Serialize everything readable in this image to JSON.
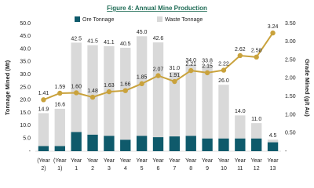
{
  "chart_data": {
    "type": "bar-line",
    "title": "Figure 4: Annual Mine Production",
    "categories": [
      [
        "(Year",
        "2)"
      ],
      [
        "(Year",
        "1)"
      ],
      [
        "Year",
        "1"
      ],
      [
        "Year",
        "2"
      ],
      [
        "Year",
        "3"
      ],
      [
        "Year",
        "4"
      ],
      [
        "Year",
        "5"
      ],
      [
        "Year",
        "6"
      ],
      [
        "Year",
        "7"
      ],
      [
        "Year",
        "8"
      ],
      [
        "Year",
        "9"
      ],
      [
        "Year",
        "10"
      ],
      [
        "Year",
        "11"
      ],
      [
        "Year",
        "12"
      ],
      [
        "Year",
        "13"
      ]
    ],
    "series": [
      {
        "name": "Ore Tonnage",
        "color": "#0f5a6b",
        "values": [
          2,
          2,
          7.5,
          6.5,
          6,
          4.5,
          6,
          5.5,
          5.8,
          6,
          5,
          5,
          5,
          5,
          3.5
        ]
      },
      {
        "name": "Waste Tonnage",
        "color": "#d9d9d9",
        "values": [
          12.9,
          14.6,
          35,
          35,
          35.1,
          36,
          39,
          37.1,
          25.2,
          28,
          28.8,
          21,
          9,
          6,
          1
        ]
      },
      {
        "name": "Grade",
        "type": "line",
        "axis": "y2",
        "color": "#c9a23c",
        "values": [
          1.41,
          1.59,
          1.6,
          1.48,
          1.63,
          1.66,
          1.85,
          2.07,
          1.91,
          2.21,
          2.15,
          2.22,
          2.62,
          2.58,
          3.24
        ],
        "value_labels": [
          "1.41",
          "1.59",
          "1.60",
          "1.48",
          "1.63",
          "1.66",
          "1.85",
          "2.07",
          "1.91",
          "2.21",
          "2.15",
          "2.22",
          "2.62",
          "2.58",
          "3.24"
        ]
      }
    ],
    "totals": [
      14.9,
      16.6,
      42.5,
      41.5,
      41.1,
      40.5,
      45.0,
      42.6,
      31.0,
      34.0,
      33.8,
      26.0,
      14.0,
      11.0,
      4.5
    ],
    "total_labels": [
      "14.9",
      "16.6",
      "42.5",
      "41.5",
      "41.1",
      "40.5",
      "45.0",
      "42.6",
      "31.0",
      "34.0",
      "33.8",
      "26.0",
      "14.0",
      "11.0",
      "4.5"
    ],
    "ylabel": "Tonnage Mined (Mt)",
    "y2label": "Grade Mined (g/t Au)",
    "ylim": [
      0,
      50
    ],
    "yticks": [
      {
        "value": 0,
        "label": "-"
      },
      {
        "value": 5,
        "label": "5.0"
      },
      {
        "value": 10,
        "label": "10.0"
      },
      {
        "value": 15,
        "label": "15.0"
      },
      {
        "value": 20,
        "label": "20.0"
      },
      {
        "value": 25,
        "label": "25.0"
      },
      {
        "value": 30,
        "label": "30.0"
      },
      {
        "value": 35,
        "label": "35.0"
      },
      {
        "value": 40,
        "label": "40.0"
      },
      {
        "value": 45,
        "label": "45.0"
      },
      {
        "value": 50,
        "label": "50.0"
      }
    ],
    "y2lim": [
      0,
      3.5
    ],
    "y2ticks": [
      {
        "value": 0,
        "label": "-"
      },
      {
        "value": 0.5,
        "label": "0.50"
      },
      {
        "value": 1,
        "label": "1.00"
      },
      {
        "value": 1.5,
        "label": "1.50"
      },
      {
        "value": 2,
        "label": "2.00"
      },
      {
        "value": 2.5,
        "label": "2.50"
      },
      {
        "value": 3,
        "label": "3.00"
      },
      {
        "value": 3.5,
        "label": "3.50"
      }
    ]
  }
}
